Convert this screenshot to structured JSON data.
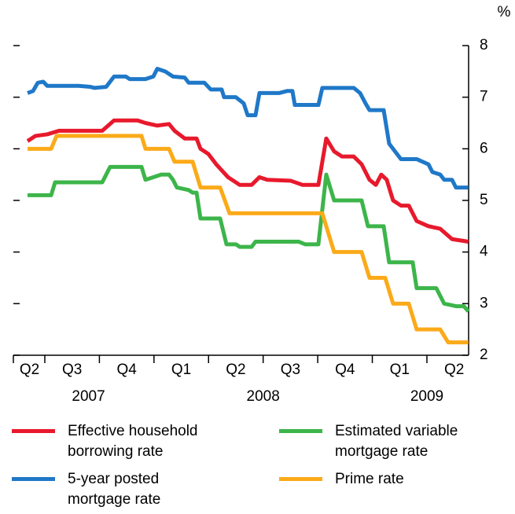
{
  "chart_data": {
    "type": "line",
    "y_unit": "%",
    "xlim": [
      2007.356,
      2009.441
    ],
    "xticks": [
      2007.5,
      2007.75,
      2008,
      2008.25,
      2008.5,
      2008.75,
      2009,
      2009.25
    ],
    "quarter_labels": [
      {
        "value": 2007.43,
        "label": "Q2"
      },
      {
        "value": 2007.625,
        "label": "Q3"
      },
      {
        "value": 2007.875,
        "label": "Q4"
      },
      {
        "value": 2008.125,
        "label": "Q1"
      },
      {
        "value": 2008.375,
        "label": "Q2"
      },
      {
        "value": 2008.625,
        "label": "Q3"
      },
      {
        "value": 2008.875,
        "label": "Q4"
      },
      {
        "value": 2009.125,
        "label": "Q1"
      },
      {
        "value": 2009.375,
        "label": "Q2"
      }
    ],
    "year_labels": [
      {
        "value": 2007.7,
        "label": "2007"
      },
      {
        "value": 2008.5,
        "label": "2008"
      },
      {
        "value": 2009.25,
        "label": "2009"
      }
    ],
    "ylim": [
      2,
      8
    ],
    "yticks": [
      2,
      3,
      4,
      5,
      6,
      7,
      8
    ],
    "series": [
      {
        "name": "Effective household borrowing rate",
        "color": "#e8192c",
        "x": [
          2007.421,
          2007.457,
          2007.511,
          2007.565,
          2007.655,
          2007.763,
          2007.817,
          2007.925,
          2007.961,
          2008.015,
          2008.069,
          2008.094,
          2008.141,
          2008.195,
          2008.213,
          2008.249,
          2008.285,
          2008.339,
          2008.393,
          2008.447,
          2008.483,
          2008.519,
          2008.627,
          2008.681,
          2008.753,
          2008.789,
          2008.825,
          2008.861,
          2008.915,
          2008.951,
          2008.987,
          2009.016,
          2009.041,
          2009.066,
          2009.095,
          2009.131,
          2009.167,
          2009.203,
          2009.257,
          2009.311,
          2009.365,
          2009.44
        ],
        "values": [
          6.15,
          6.25,
          6.28,
          6.35,
          6.35,
          6.35,
          6.55,
          6.55,
          6.5,
          6.45,
          6.48,
          6.35,
          6.2,
          6.2,
          6.0,
          5.9,
          5.7,
          5.45,
          5.3,
          5.3,
          5.45,
          5.4,
          5.38,
          5.3,
          5.3,
          6.2,
          5.95,
          5.85,
          5.85,
          5.7,
          5.4,
          5.3,
          5.5,
          5.4,
          5.0,
          4.9,
          4.9,
          4.6,
          4.5,
          4.45,
          4.25,
          4.2
        ]
      },
      {
        "name": "5-year posted mortgage rate",
        "color": "#1f78c8",
        "x": [
          2007.421,
          2007.446,
          2007.468,
          2007.493,
          2007.511,
          2007.655,
          2007.709,
          2007.727,
          2007.781,
          2007.817,
          2007.871,
          2007.889,
          2007.961,
          2007.997,
          2008.015,
          2008.051,
          2008.087,
          2008.141,
          2008.159,
          2008.231,
          2008.26,
          2008.31,
          2008.321,
          2008.375,
          2008.411,
          2008.429,
          2008.465,
          2008.483,
          2008.573,
          2008.609,
          2008.634,
          2008.645,
          2008.753,
          2008.771,
          2008.915,
          2008.944,
          2008.969,
          2008.987,
          2009.052,
          2009.077,
          2009.095,
          2009.131,
          2009.203,
          2009.257,
          2009.275,
          2009.311,
          2009.329,
          2009.365,
          2009.383,
          2009.44
        ],
        "values": [
          7.08,
          7.12,
          7.28,
          7.3,
          7.22,
          7.22,
          7.2,
          7.18,
          7.2,
          7.4,
          7.4,
          7.35,
          7.35,
          7.4,
          7.55,
          7.5,
          7.4,
          7.38,
          7.28,
          7.28,
          7.15,
          7.15,
          7.0,
          7.0,
          6.88,
          6.65,
          6.65,
          7.08,
          7.08,
          7.12,
          7.12,
          6.85,
          6.85,
          7.18,
          7.18,
          7.08,
          6.88,
          6.75,
          6.75,
          6.1,
          6.0,
          5.8,
          5.8,
          5.7,
          5.55,
          5.5,
          5.4,
          5.4,
          5.25,
          5.25
        ]
      },
      {
        "name": "Estimated variable mortgage rate",
        "color": "#3cb54a",
        "x": [
          2007.421,
          2007.529,
          2007.547,
          2007.763,
          2007.799,
          2007.943,
          2007.961,
          2007.997,
          2008.033,
          2008.069,
          2008.087,
          2008.105,
          2008.159,
          2008.177,
          2008.195,
          2008.213,
          2008.303,
          2008.332,
          2008.375,
          2008.393,
          2008.447,
          2008.465,
          2008.663,
          2008.692,
          2008.753,
          2008.789,
          2008.825,
          2008.951,
          2008.98,
          2009.052,
          2009.077,
          2009.185,
          2009.203,
          2009.293,
          2009.329,
          2009.383,
          2009.419,
          2009.44
        ],
        "values": [
          5.1,
          5.1,
          5.35,
          5.35,
          5.65,
          5.65,
          5.4,
          5.45,
          5.5,
          5.5,
          5.4,
          5.25,
          5.2,
          5.15,
          5.15,
          4.65,
          4.65,
          4.15,
          4.15,
          4.1,
          4.1,
          4.2,
          4.2,
          4.15,
          4.15,
          5.5,
          5.0,
          5.0,
          4.5,
          4.5,
          3.8,
          3.8,
          3.3,
          3.3,
          3.0,
          2.95,
          2.95,
          2.85
        ]
      },
      {
        "name": "Prime rate",
        "color": "#fbaa19",
        "x": [
          2007.421,
          2007.529,
          2007.554,
          2007.943,
          2007.961,
          2008.069,
          2008.094,
          2008.177,
          2008.213,
          2008.303,
          2008.346,
          2008.771,
          2008.807,
          2008.825,
          2008.951,
          2008.987,
          2009.059,
          2009.095,
          2009.167,
          2009.203,
          2009.311,
          2009.347,
          2009.44
        ],
        "values": [
          6.0,
          6.0,
          6.25,
          6.25,
          6.0,
          6.0,
          5.75,
          5.75,
          5.25,
          5.25,
          4.75,
          4.75,
          4.25,
          4.0,
          4.0,
          3.5,
          3.5,
          3.0,
          3.0,
          2.5,
          2.5,
          2.25,
          2.25
        ]
      }
    ]
  }
}
